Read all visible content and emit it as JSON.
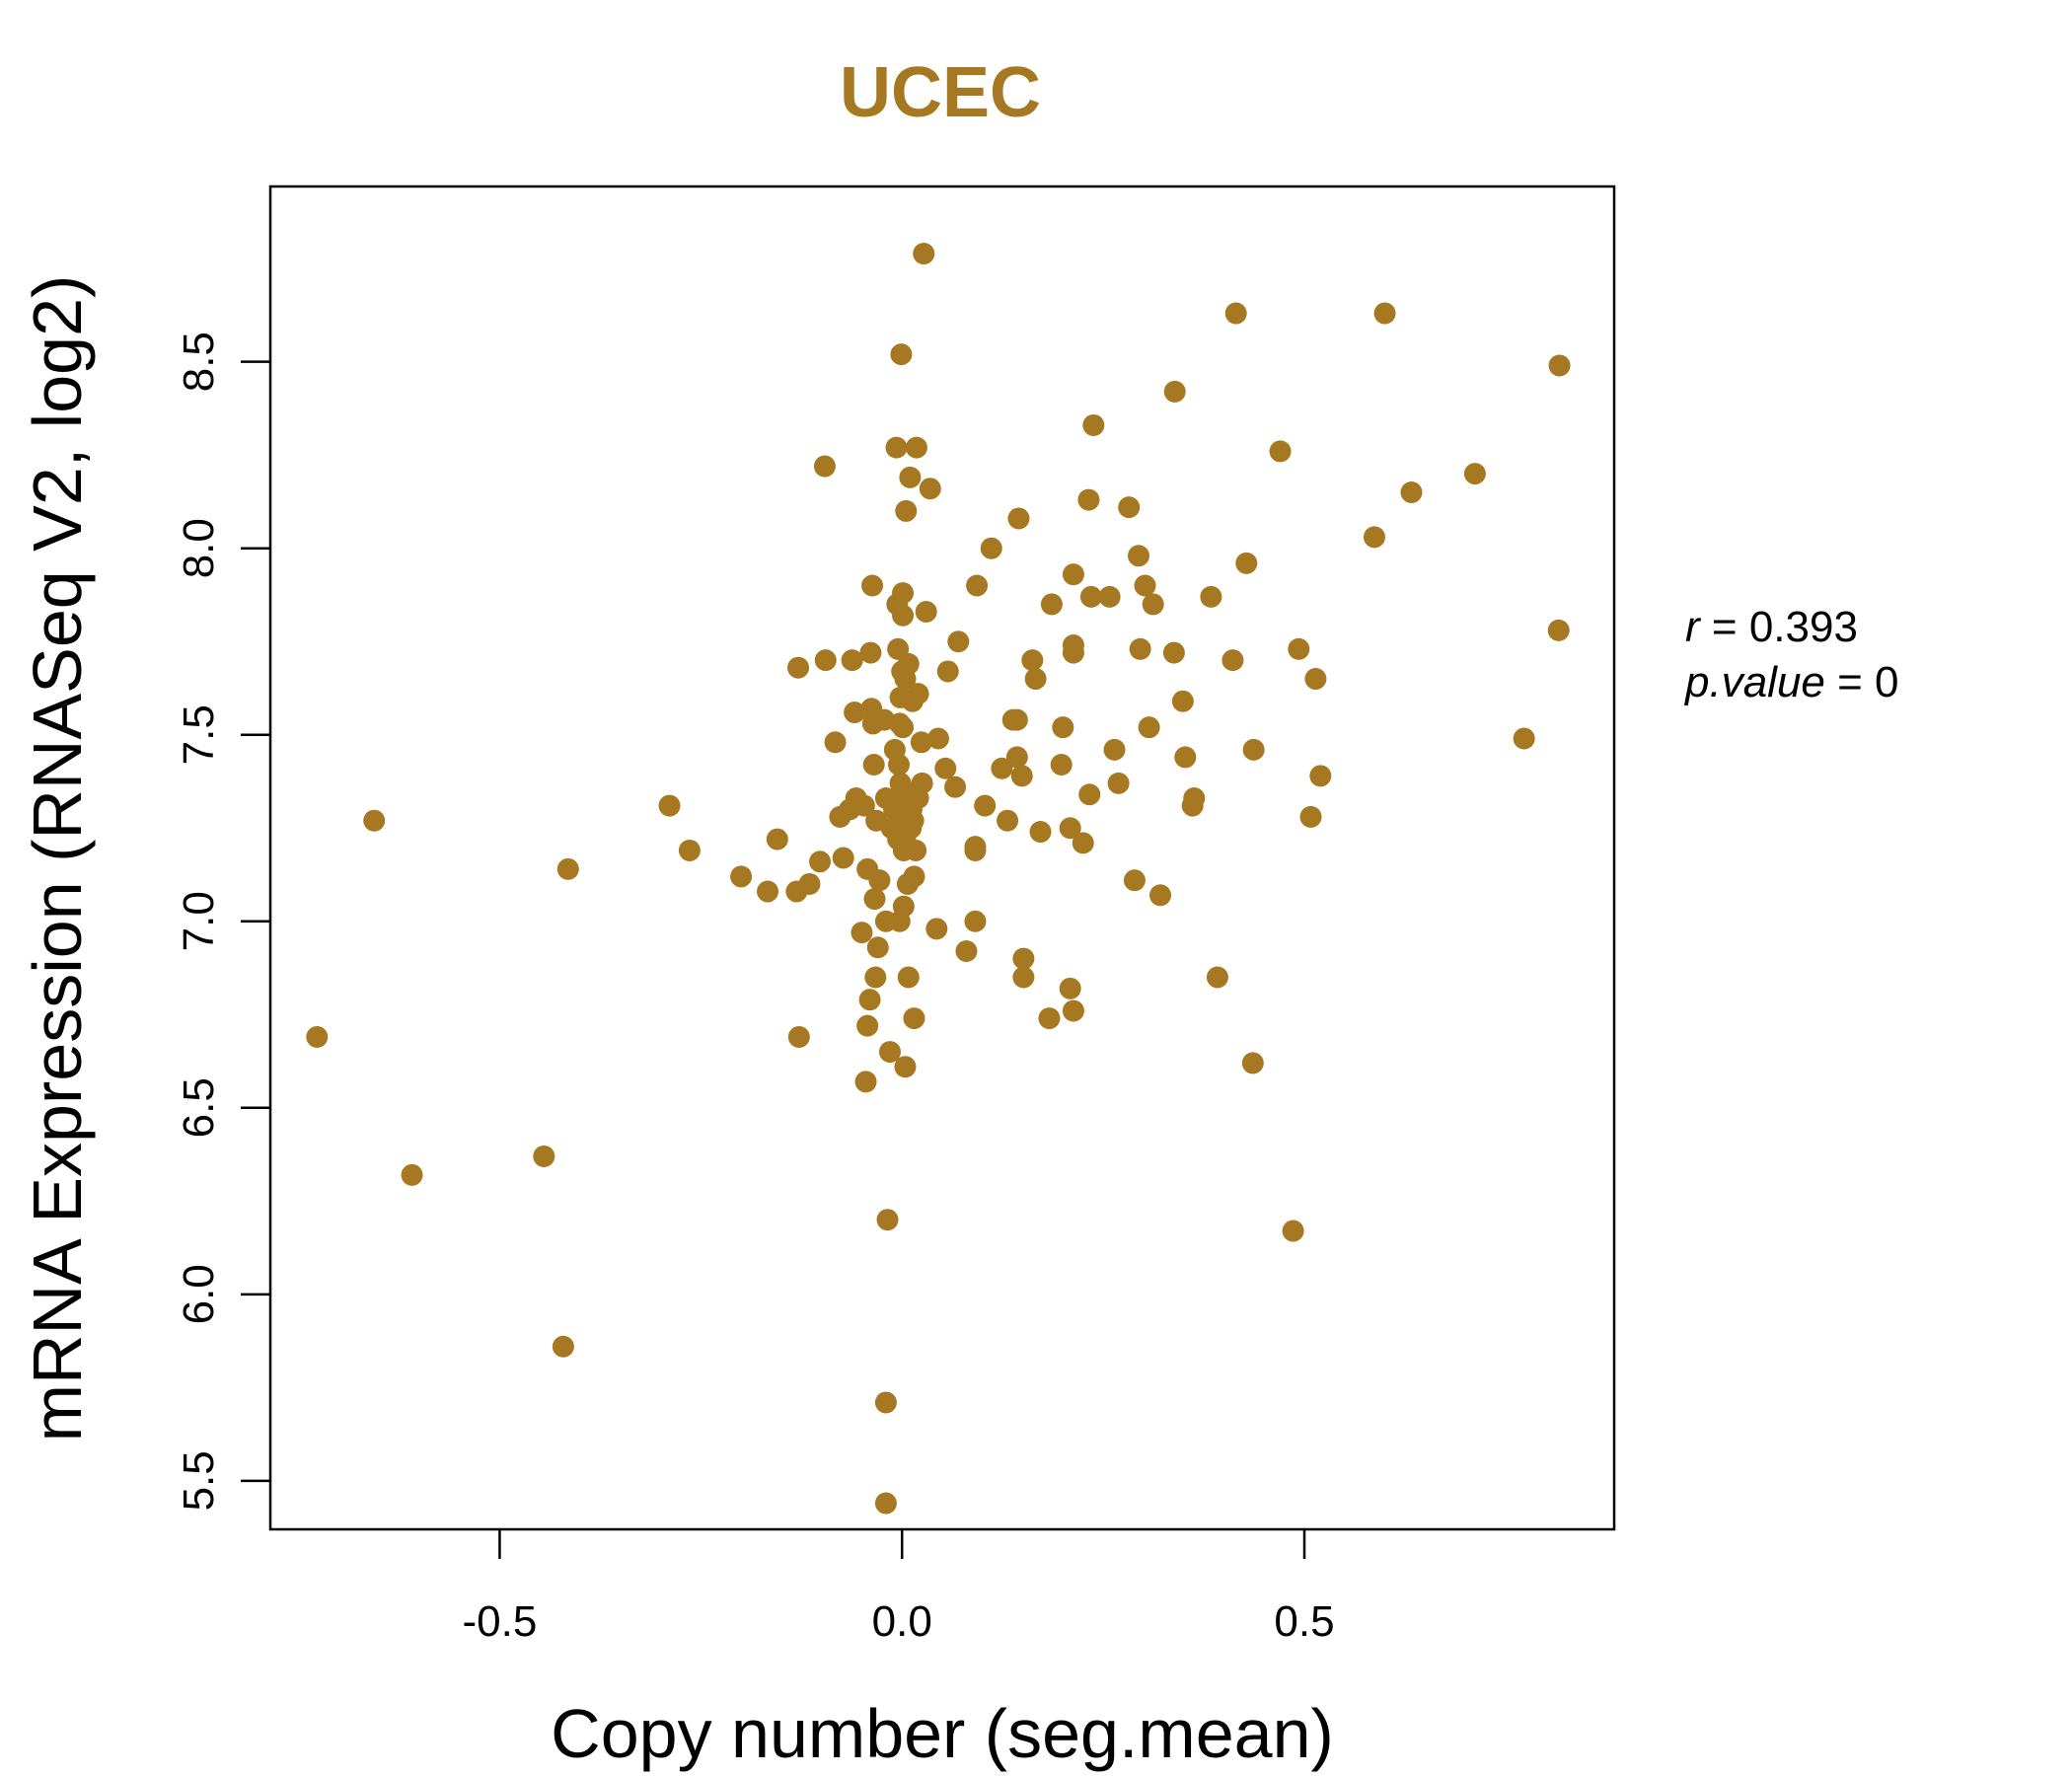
{
  "accent_color": "#A67821",
  "chart_data": {
    "type": "scatter",
    "title": "UCEC",
    "xlabel": "Copy number (seg.mean)",
    "ylabel": "mRNA Expression (RNASeq V2, log2)",
    "xlim": [
      -0.785,
      0.885
    ],
    "ylim": [
      5.37,
      8.97
    ],
    "x_ticks": [
      -0.5,
      0.0,
      0.5
    ],
    "x_tick_labels": [
      "-0.5",
      "0.0",
      "0.5"
    ],
    "y_ticks": [
      5.5,
      6.0,
      6.5,
      7.0,
      7.5,
      8.0,
      8.5
    ],
    "y_tick_labels": [
      "5.5",
      "6.0",
      "6.5",
      "7.0",
      "7.5",
      "8.0",
      "8.5"
    ],
    "grid": false,
    "annotation": {
      "r_label": "r",
      "r_value": "0.393",
      "p_label": "p.value",
      "p_value": "0"
    },
    "series": [
      {
        "color": "#A67821",
        "points": [
          [
            -0.727,
            6.69
          ],
          [
            -0.656,
            7.27
          ],
          [
            -0.609,
            6.32
          ],
          [
            -0.445,
            6.37
          ],
          [
            -0.421,
            5.86
          ],
          [
            -0.415,
            7.14
          ],
          [
            -0.289,
            7.31
          ],
          [
            -0.264,
            7.19
          ],
          [
            -0.2,
            7.12
          ],
          [
            -0.167,
            7.08
          ],
          [
            -0.155,
            7.22
          ],
          [
            -0.131,
            7.08
          ],
          [
            -0.129,
            7.68
          ],
          [
            -0.128,
            6.69
          ],
          [
            -0.115,
            7.1
          ],
          [
            -0.102,
            7.16
          ],
          [
            -0.096,
            8.22
          ],
          [
            -0.095,
            7.7
          ],
          [
            -0.083,
            7.48
          ],
          [
            -0.077,
            7.28
          ],
          [
            -0.073,
            7.17
          ],
          [
            -0.065,
            7.3
          ],
          [
            -0.062,
            7.7
          ],
          [
            -0.059,
            7.56
          ],
          [
            -0.057,
            7.33
          ],
          [
            -0.05,
            6.97
          ],
          [
            -0.047,
            7.31
          ],
          [
            -0.045,
            6.57
          ],
          [
            -0.043,
            7.14
          ],
          [
            -0.043,
            6.72
          ],
          [
            -0.04,
            6.79
          ],
          [
            -0.039,
            7.72
          ],
          [
            -0.038,
            7.57
          ],
          [
            -0.037,
            7.9
          ],
          [
            -0.036,
            7.53
          ],
          [
            -0.035,
            7.42
          ],
          [
            -0.034,
            7.06
          ],
          [
            -0.033,
            6.85
          ],
          [
            -0.032,
            7.27
          ],
          [
            -0.03,
            6.93
          ],
          [
            -0.028,
            7.11
          ],
          [
            -0.022,
            7.54
          ],
          [
            -0.02,
            5.71
          ],
          [
            -0.02,
            5.44
          ],
          [
            -0.02,
            7.33
          ],
          [
            -0.02,
            7.0
          ],
          [
            -0.018,
            6.2
          ],
          [
            -0.015,
            6.65
          ],
          [
            -0.013,
            7.25
          ],
          [
            -0.01,
            7.3
          ],
          [
            -0.009,
            7.46
          ],
          [
            -0.007,
            8.27
          ],
          [
            -0.006,
            7.85
          ],
          [
            -0.005,
            7.22
          ],
          [
            -0.005,
            7.73
          ],
          [
            -0.004,
            7.42
          ],
          [
            -0.003,
            7.0
          ],
          [
            -0.003,
            7.53
          ],
          [
            -0.002,
            7.37
          ],
          [
            -0.002,
            7.6
          ],
          [
            -0.001,
            8.52
          ],
          [
            0.0,
            7.67
          ],
          [
            0.001,
            7.52
          ],
          [
            0.001,
            7.88
          ],
          [
            0.001,
            7.82
          ],
          [
            0.002,
            7.27
          ],
          [
            0.002,
            7.19
          ],
          [
            0.002,
            7.04
          ],
          [
            0.003,
            7.35
          ],
          [
            0.003,
            7.32
          ],
          [
            0.004,
            7.65
          ],
          [
            0.004,
            7.22
          ],
          [
            0.004,
            6.61
          ],
          [
            0.005,
            8.1
          ],
          [
            0.006,
            7.29
          ],
          [
            0.007,
            7.1
          ],
          [
            0.008,
            6.85
          ],
          [
            0.008,
            7.69
          ],
          [
            0.01,
            8.19
          ],
          [
            0.011,
            7.25
          ],
          [
            0.012,
            7.34
          ],
          [
            0.012,
            7.3
          ],
          [
            0.013,
            7.59
          ],
          [
            0.014,
            7.27
          ],
          [
            0.015,
            6.74
          ],
          [
            0.015,
            7.12
          ],
          [
            0.017,
            7.19
          ],
          [
            0.018,
            8.27
          ],
          [
            0.02,
            7.61
          ],
          [
            0.02,
            7.33
          ],
          [
            0.024,
            7.48
          ],
          [
            0.025,
            7.37
          ],
          [
            0.027,
            8.79
          ],
          [
            0.03,
            7.83
          ],
          [
            0.035,
            8.16
          ],
          [
            0.043,
            6.98
          ],
          [
            0.045,
            7.49
          ],
          [
            0.054,
            7.41
          ],
          [
            0.057,
            7.67
          ],
          [
            0.066,
            7.36
          ],
          [
            0.07,
            7.75
          ],
          [
            0.08,
            6.92
          ],
          [
            0.091,
            7.2
          ],
          [
            0.091,
            7.19
          ],
          [
            0.091,
            7.0
          ],
          [
            0.093,
            7.9
          ],
          [
            0.103,
            7.31
          ],
          [
            0.111,
            8.0
          ],
          [
            0.124,
            7.41
          ],
          [
            0.131,
            7.27
          ],
          [
            0.138,
            7.54
          ],
          [
            0.143,
            7.44
          ],
          [
            0.143,
            7.54
          ],
          [
            0.145,
            8.08
          ],
          [
            0.149,
            7.39
          ],
          [
            0.151,
            6.9
          ],
          [
            0.151,
            6.85
          ],
          [
            0.162,
            7.7
          ],
          [
            0.166,
            7.65
          ],
          [
            0.172,
            7.24
          ],
          [
            0.183,
            6.74
          ],
          [
            0.186,
            7.85
          ],
          [
            0.198,
            7.42
          ],
          [
            0.2,
            7.52
          ],
          [
            0.209,
            6.82
          ],
          [
            0.209,
            7.25
          ],
          [
            0.213,
            7.74
          ],
          [
            0.213,
            7.72
          ],
          [
            0.213,
            6.76
          ],
          [
            0.213,
            7.93
          ],
          [
            0.225,
            7.21
          ],
          [
            0.232,
            8.13
          ],
          [
            0.233,
            7.34
          ],
          [
            0.235,
            7.87
          ],
          [
            0.238,
            8.33
          ],
          [
            0.258,
            7.87
          ],
          [
            0.264,
            7.46
          ],
          [
            0.269,
            7.37
          ],
          [
            0.282,
            8.11
          ],
          [
            0.289,
            7.11
          ],
          [
            0.294,
            7.98
          ],
          [
            0.296,
            7.73
          ],
          [
            0.302,
            7.9
          ],
          [
            0.307,
            7.52
          ],
          [
            0.312,
            7.85
          ],
          [
            0.321,
            7.07
          ],
          [
            0.338,
            7.72
          ],
          [
            0.339,
            8.42
          ],
          [
            0.349,
            7.59
          ],
          [
            0.352,
            7.44
          ],
          [
            0.361,
            7.31
          ],
          [
            0.363,
            7.33
          ],
          [
            0.384,
            7.87
          ],
          [
            0.392,
            6.85
          ],
          [
            0.411,
            7.7
          ],
          [
            0.415,
            8.63
          ],
          [
            0.428,
            7.96
          ],
          [
            0.436,
            6.62
          ],
          [
            0.437,
            7.46
          ],
          [
            0.47,
            8.26
          ],
          [
            0.486,
            6.17
          ],
          [
            0.493,
            7.73
          ],
          [
            0.508,
            7.28
          ],
          [
            0.514,
            7.65
          ],
          [
            0.52,
            7.39
          ],
          [
            0.587,
            8.03
          ],
          [
            0.6,
            8.63
          ],
          [
            0.633,
            8.15
          ],
          [
            0.712,
            8.2
          ],
          [
            0.773,
            7.49
          ],
          [
            0.817,
            8.49
          ],
          [
            0.816,
            7.78
          ]
        ]
      }
    ]
  }
}
